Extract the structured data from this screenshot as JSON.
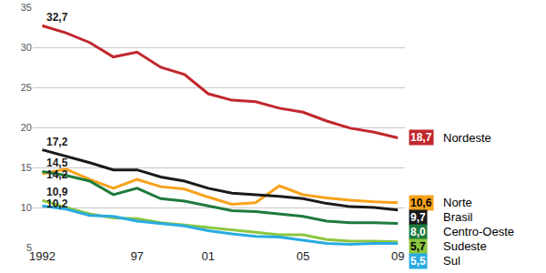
{
  "chart_data": {
    "type": "line",
    "categories": [
      "1992",
      null,
      null,
      null,
      "97",
      null,
      null,
      "01",
      null,
      null,
      null,
      "05",
      null,
      null,
      null,
      "09"
    ],
    "series": [
      {
        "name": "Nordeste",
        "color": "#c1272d",
        "values": [
          32.7,
          31.8,
          30.6,
          28.8,
          29.4,
          27.5,
          26.6,
          24.2,
          23.4,
          23.2,
          22.4,
          21.9,
          20.8,
          19.9,
          19.4,
          18.7
        ],
        "value_labels": [
          "32,7",
          null,
          null,
          null,
          null,
          null,
          null,
          null,
          null,
          null,
          null,
          null,
          null,
          null,
          null,
          "18,7"
        ]
      },
      {
        "name": "Norte",
        "color": "#f7a21b",
        "values": [
          14.2,
          14.8,
          13.5,
          12.4,
          13.5,
          12.6,
          12.3,
          11.3,
          10.4,
          10.6,
          12.7,
          11.6,
          11.2,
          10.9,
          10.7,
          10.6
        ],
        "value_labels": [
          "14,2",
          null,
          null,
          null,
          null,
          null,
          null,
          null,
          null,
          null,
          null,
          null,
          null,
          null,
          null,
          "10,6"
        ]
      },
      {
        "name": "Brasil",
        "color": "#1a1a1a",
        "values": [
          17.2,
          16.4,
          15.6,
          14.7,
          14.7,
          13.8,
          13.3,
          12.4,
          11.8,
          11.6,
          11.4,
          11.1,
          10.5,
          10.1,
          10.0,
          9.7
        ],
        "value_labels": [
          "17,2",
          null,
          null,
          null,
          null,
          null,
          null,
          null,
          null,
          null,
          null,
          null,
          null,
          null,
          null,
          "9,7"
        ]
      },
      {
        "name": "Centro-Oeste",
        "color": "#1e7a3c",
        "values": [
          14.5,
          14.0,
          13.3,
          11.6,
          12.4,
          11.1,
          10.8,
          10.2,
          9.6,
          9.5,
          9.2,
          8.9,
          8.3,
          8.1,
          8.1,
          8.0
        ],
        "value_labels": [
          "14,5",
          null,
          null,
          null,
          null,
          null,
          null,
          null,
          null,
          null,
          null,
          null,
          null,
          null,
          null,
          "8,0"
        ]
      },
      {
        "name": "Sudeste",
        "color": "#8cc63f",
        "values": [
          10.9,
          10.0,
          9.2,
          8.7,
          8.6,
          8.1,
          7.8,
          7.5,
          7.2,
          6.9,
          6.6,
          6.6,
          6.0,
          5.8,
          5.8,
          5.7
        ],
        "value_labels": [
          "10,9",
          null,
          null,
          null,
          null,
          null,
          null,
          null,
          null,
          null,
          null,
          null,
          null,
          null,
          null,
          "5,7"
        ]
      },
      {
        "name": "Sul",
        "color": "#29abe2",
        "values": [
          10.2,
          9.8,
          9.0,
          8.9,
          8.3,
          8.0,
          7.7,
          7.1,
          6.7,
          6.4,
          6.3,
          5.9,
          5.5,
          5.4,
          5.5,
          5.5
        ],
        "value_labels": [
          "10,2",
          null,
          null,
          null,
          null,
          null,
          null,
          null,
          null,
          null,
          null,
          null,
          null,
          null,
          null,
          "5,5"
        ]
      }
    ],
    "ylim": [
      5,
      35
    ],
    "yticks": [
      5,
      10,
      15,
      20,
      25,
      30,
      35
    ],
    "grid": true,
    "data_labels": true
  }
}
